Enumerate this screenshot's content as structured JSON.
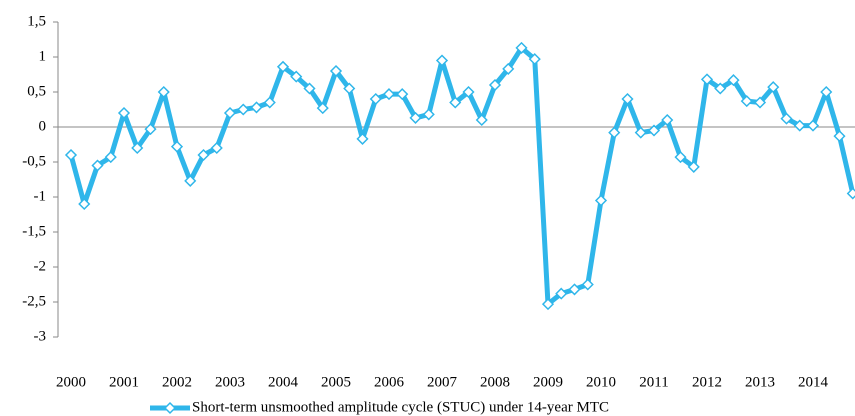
{
  "chart_data": {
    "type": "line",
    "categories": [
      "2000",
      null,
      null,
      null,
      "2001",
      null,
      null,
      null,
      "2002",
      null,
      null,
      null,
      "2003",
      null,
      null,
      null,
      "2004",
      null,
      null,
      null,
      "2005",
      null,
      null,
      null,
      "2006",
      null,
      null,
      null,
      "2007",
      null,
      null,
      null,
      "2008",
      null,
      null,
      null,
      "2009",
      null,
      null,
      null,
      "2010",
      null,
      null,
      null,
      "2011",
      null,
      null,
      null,
      "2012",
      null,
      null,
      null,
      "2013",
      null,
      null,
      null,
      "2014",
      null,
      null,
      null
    ],
    "series": [
      {
        "name": "Short-term unsmoothed amplitude cycle (STUC) under 14-year MTC",
        "color": "#2fb6ea",
        "values": [
          -0.4,
          -1.1,
          -0.55,
          -0.43,
          0.2,
          -0.3,
          -0.03,
          0.5,
          -0.28,
          -0.77,
          -0.4,
          -0.3,
          0.2,
          0.25,
          0.28,
          0.35,
          0.86,
          0.72,
          0.55,
          0.27,
          0.8,
          0.55,
          -0.17,
          0.4,
          0.47,
          0.47,
          0.13,
          0.18,
          0.95,
          0.35,
          0.5,
          0.1,
          0.6,
          0.83,
          1.13,
          0.97,
          -2.53,
          -2.38,
          -2.32,
          -2.25,
          -1.05,
          -0.08,
          0.4,
          -0.08,
          -0.05,
          0.1,
          -0.43,
          -0.57,
          0.68,
          0.55,
          0.67,
          0.37,
          0.35,
          0.57,
          0.12,
          0.02,
          0.02,
          0.5,
          -0.13,
          -0.95
        ]
      }
    ],
    "ylim": [
      -3,
      1.5
    ],
    "yticks": [
      {
        "value": 1.5,
        "label": "1,5"
      },
      1,
      {
        "value": 0.5,
        "label": "0,5"
      },
      0,
      {
        "value": -0.5,
        "label": "-0,5"
      },
      -1,
      {
        "value": -1.5,
        "label": "-1,5"
      },
      -2,
      {
        "value": -2.5,
        "label": "-2,5"
      },
      -3
    ],
    "grid": false,
    "legend": "bottom"
  }
}
